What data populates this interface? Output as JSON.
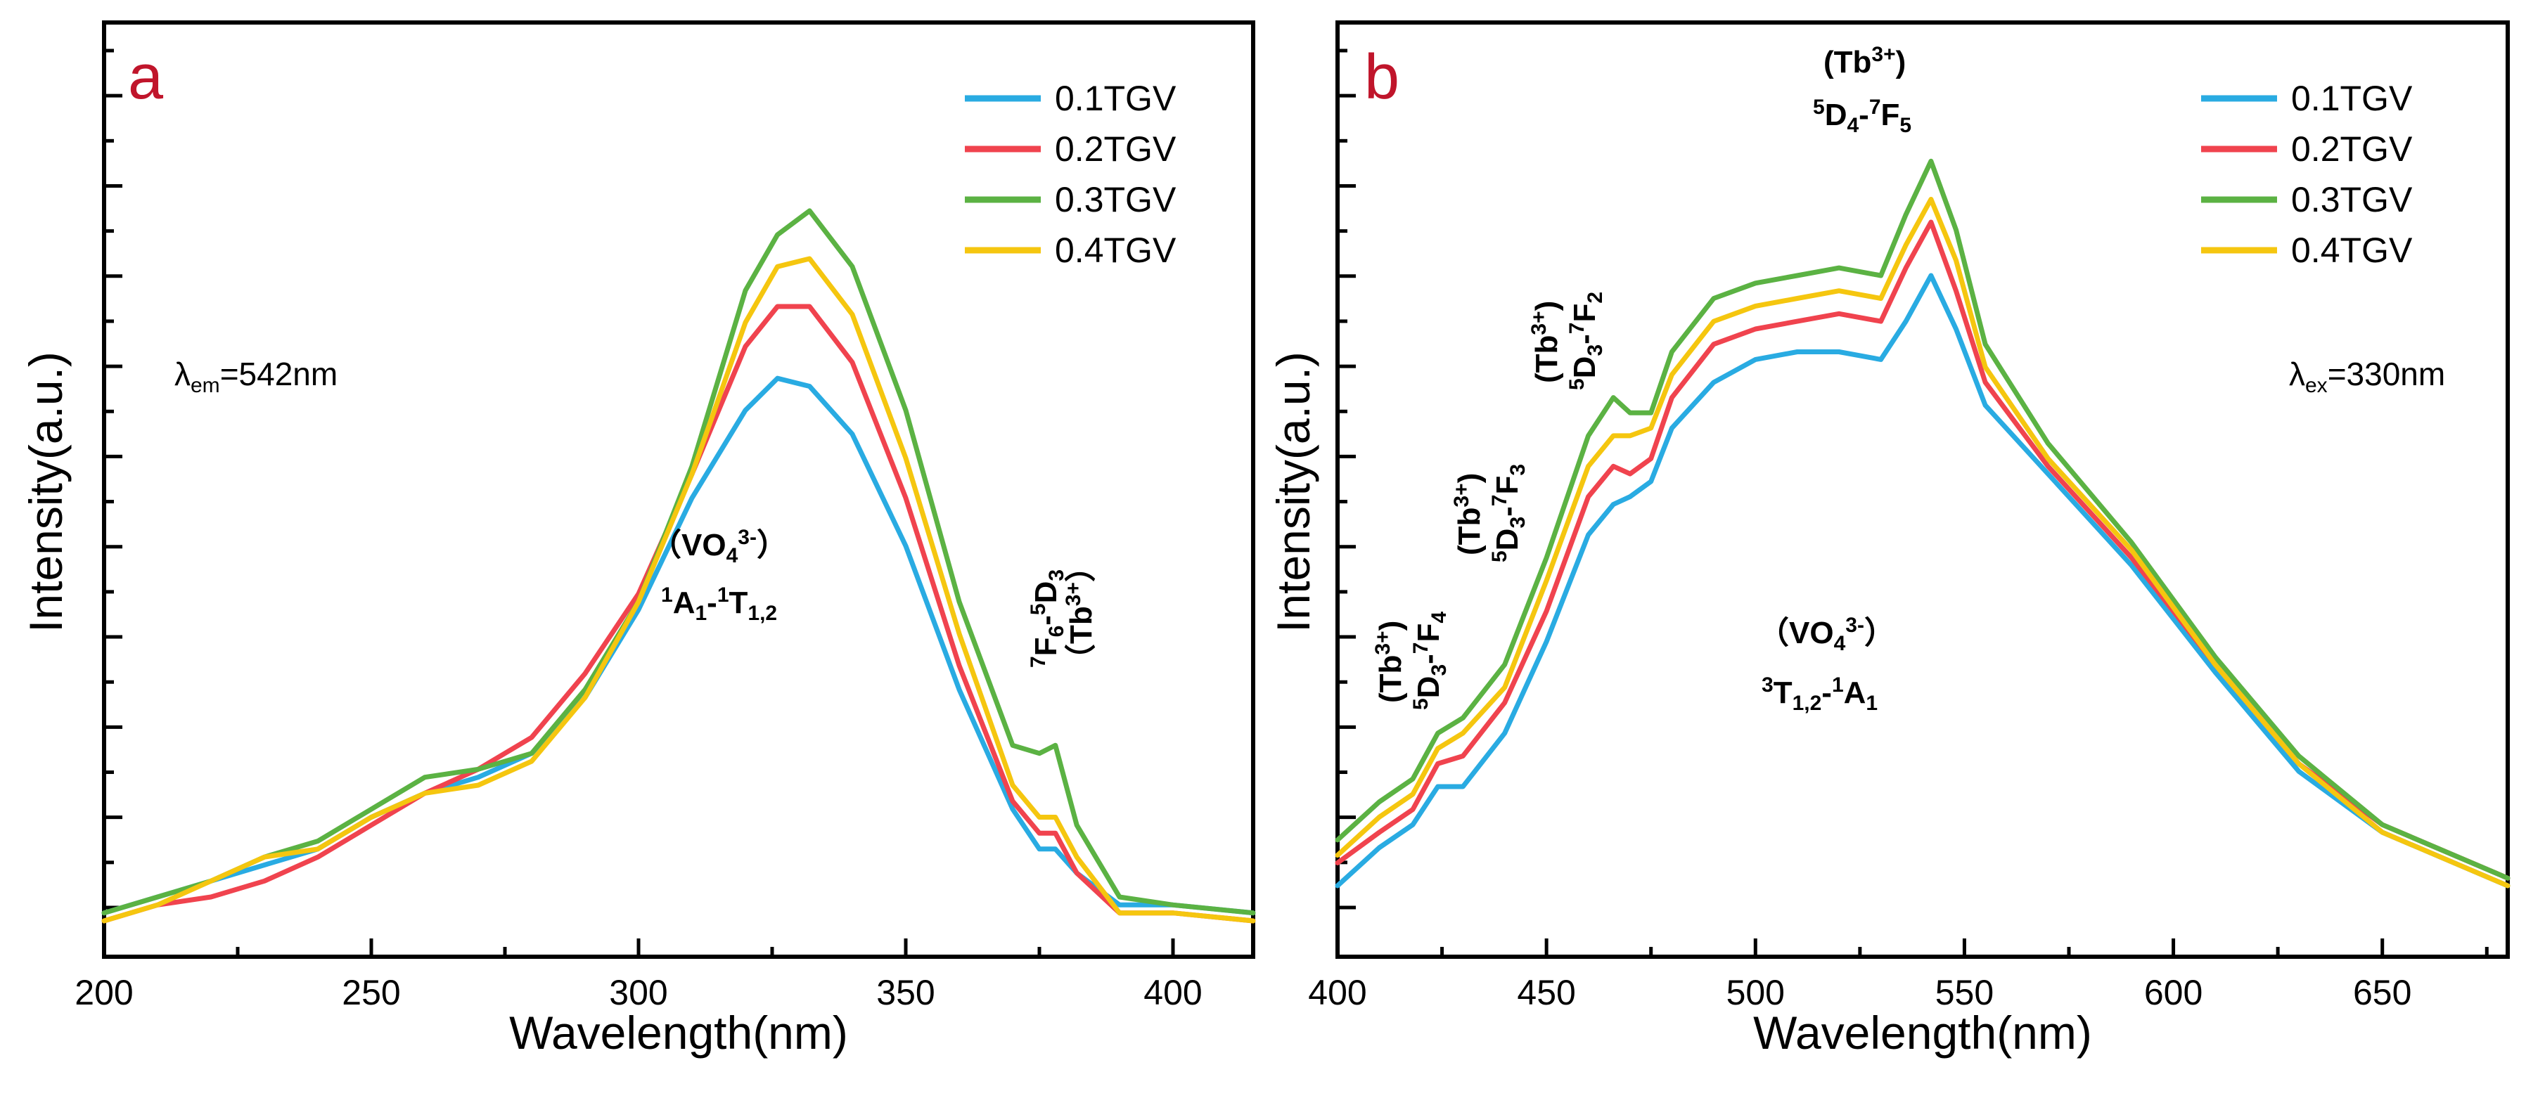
{
  "chart_data": [
    {
      "type": "line",
      "panel_label": "a",
      "xlabel": "Wavelength(nm)",
      "ylabel": "Intensity(a.u.)",
      "xlim": [
        200,
        415
      ],
      "ylim": [
        0,
        100
      ],
      "x_ticks": [
        "200",
        "250",
        "300",
        "350",
        "400"
      ],
      "y_tick_labels_shown": false,
      "legend_position": "top-right",
      "colors": {
        "0.1TGV": "#29abe2",
        "0.2TGV": "#f0434e",
        "0.3TGV": "#5bb243",
        "0.4TGV": "#f5c60f"
      },
      "annotations": {
        "lambda": "λem=542nm",
        "vo4_line1": "（VO43-）",
        "vo4_line2": "1A1-1T1,2",
        "tb_line1": "7F6-5D3",
        "tb_line2": "（Tb3+）"
      },
      "x": [
        200,
        210,
        220,
        230,
        240,
        250,
        260,
        270,
        280,
        290,
        300,
        310,
        320,
        326,
        332,
        340,
        350,
        360,
        370,
        375,
        378,
        382,
        390,
        400,
        415
      ],
      "series": [
        {
          "name": "0.1TGV",
          "values": [
            1,
            3,
            5,
            7,
            9,
            13,
            16,
            18,
            21,
            28,
            39,
            53,
            64,
            68,
            67,
            61,
            47,
            29,
            14,
            9,
            9,
            6,
            2,
            2,
            1
          ]
        },
        {
          "name": "0.2TGV",
          "values": [
            0,
            2,
            3,
            5,
            8,
            12,
            16,
            19,
            23,
            31,
            41,
            56,
            72,
            77,
            77,
            70,
            53,
            32,
            15,
            11,
            11,
            6,
            1,
            1,
            0
          ]
        },
        {
          "name": "0.3TGV",
          "values": [
            1,
            3,
            5,
            8,
            10,
            14,
            18,
            19,
            21,
            29,
            40,
            57,
            79,
            86,
            89,
            82,
            64,
            40,
            22,
            21,
            22,
            12,
            3,
            2,
            1
          ]
        },
        {
          "name": "0.4TGV",
          "values": [
            0,
            2,
            5,
            8,
            9,
            13,
            16,
            17,
            20,
            28,
            40,
            56,
            75,
            82,
            83,
            76,
            58,
            36,
            17,
            13,
            13,
            8,
            1,
            1,
            0
          ]
        }
      ]
    },
    {
      "type": "line",
      "panel_label": "b",
      "xlabel": "Wavelength(nm)",
      "ylabel": "Intensity(a.u.)",
      "xlim": [
        400,
        680
      ],
      "ylim": [
        0,
        100
      ],
      "x_ticks": [
        "400",
        "450",
        "500",
        "550",
        "600",
        "650"
      ],
      "y_tick_labels_shown": false,
      "legend_position": "top-right",
      "colors": {
        "0.1TGV": "#29abe2",
        "0.2TGV": "#f0434e",
        "0.3TGV": "#5bb243",
        "0.4TGV": "#f5c60f"
      },
      "annotations": {
        "lambda": "λex=330nm",
        "vo4_line1": "（VO43-）",
        "vo4_line2": "3T1,2-1A1",
        "tb_a_line1": "(Tb3+)",
        "tb_a_line2": "5D3-7F4",
        "tb_b_line1": "(Tb3+)",
        "tb_b_line2": "5D3-7F3",
        "tb_c_line1": "(Tb3+)",
        "tb_c_line2": "5D3-7F2",
        "tb_d_line1": "(Tb3+)",
        "tb_d_line2": "5D4-7F5"
      },
      "x": [
        400,
        410,
        418,
        424,
        430,
        440,
        450,
        460,
        466,
        470,
        475,
        480,
        490,
        500,
        510,
        520,
        530,
        536,
        542,
        548,
        555,
        570,
        590,
        610,
        630,
        650,
        680
      ],
      "series": [
        {
          "name": "0.1TGV",
          "values": [
            0,
            5,
            8,
            13,
            13,
            20,
            32,
            46,
            50,
            51,
            53,
            60,
            66,
            69,
            70,
            70,
            69,
            74,
            80,
            73,
            63,
            54,
            42,
            28,
            15,
            7,
            0
          ]
        },
        {
          "name": "0.2TGV",
          "values": [
            3,
            7,
            10,
            16,
            17,
            24,
            36,
            51,
            55,
            54,
            56,
            64,
            71,
            73,
            74,
            75,
            74,
            81,
            87,
            78,
            66,
            55,
            43,
            29,
            16,
            8,
            1
          ]
        },
        {
          "name": "0.3TGV",
          "values": [
            6,
            11,
            14,
            20,
            22,
            29,
            43,
            59,
            64,
            62,
            62,
            70,
            77,
            79,
            80,
            81,
            80,
            88,
            95,
            86,
            71,
            58,
            45,
            30,
            17,
            8,
            1
          ]
        },
        {
          "name": "0.4TGV",
          "values": [
            4,
            9,
            12,
            18,
            20,
            26,
            40,
            55,
            59,
            59,
            60,
            67,
            74,
            76,
            77,
            78,
            77,
            84,
            90,
            82,
            68,
            56,
            44,
            29,
            16,
            7,
            0
          ]
        }
      ]
    }
  ]
}
